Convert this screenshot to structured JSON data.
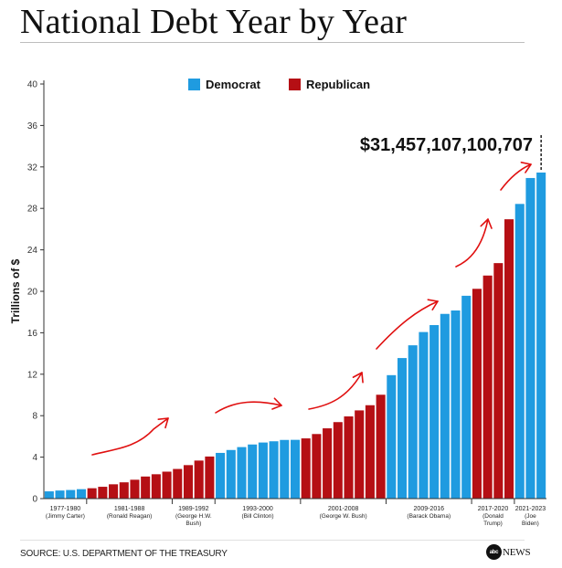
{
  "title": "National Debt Year by Year",
  "source": "SOURCE: U.S. DEPARTMENT OF THE TREASURY",
  "logo": {
    "mark": "abc",
    "text": "NEWS"
  },
  "colors": {
    "democrat": "#1f9be0",
    "republican": "#b50f14",
    "annotation": "#e01010",
    "axis": "#333333",
    "grid": "#dddddd"
  },
  "chart_data": {
    "type": "bar",
    "title": "",
    "xlabel": "",
    "ylabel": "Trillions of $",
    "ylim": [
      0,
      40
    ],
    "yticks": [
      0,
      4,
      8,
      12,
      16,
      20,
      24,
      28,
      32,
      36,
      40
    ],
    "grid": false,
    "legend_position": "top-center",
    "legend": [
      {
        "name": "Democrat",
        "party": "D"
      },
      {
        "name": "Republican",
        "party": "R"
      }
    ],
    "callout": "$31,457,107,100,707",
    "years": [
      1977,
      1978,
      1979,
      1980,
      1981,
      1982,
      1983,
      1984,
      1985,
      1986,
      1987,
      1988,
      1989,
      1990,
      1991,
      1992,
      1993,
      1994,
      1995,
      1996,
      1997,
      1998,
      1999,
      2000,
      2001,
      2002,
      2003,
      2004,
      2005,
      2006,
      2007,
      2008,
      2009,
      2010,
      2011,
      2012,
      2013,
      2014,
      2015,
      2016,
      2017,
      2018,
      2019,
      2020,
      2021,
      2022,
      2023
    ],
    "values": [
      0.7,
      0.78,
      0.83,
      0.91,
      1.0,
      1.14,
      1.38,
      1.57,
      1.82,
      2.13,
      2.35,
      2.6,
      2.86,
      3.23,
      3.67,
      4.06,
      4.41,
      4.69,
      4.97,
      5.22,
      5.41,
      5.53,
      5.66,
      5.67,
      5.81,
      6.23,
      6.78,
      7.38,
      7.93,
      8.51,
      9.01,
      10.02,
      11.91,
      13.56,
      14.79,
      16.07,
      16.74,
      17.82,
      18.15,
      19.57,
      20.24,
      21.52,
      22.72,
      26.95,
      28.43,
      30.93,
      31.46
    ],
    "parties": [
      "D",
      "D",
      "D",
      "D",
      "R",
      "R",
      "R",
      "R",
      "R",
      "R",
      "R",
      "R",
      "R",
      "R",
      "R",
      "R",
      "D",
      "D",
      "D",
      "D",
      "D",
      "D",
      "D",
      "D",
      "R",
      "R",
      "R",
      "R",
      "R",
      "R",
      "R",
      "R",
      "D",
      "D",
      "D",
      "D",
      "D",
      "D",
      "D",
      "D",
      "R",
      "R",
      "R",
      "R",
      "D",
      "D",
      "D"
    ],
    "groups": [
      {
        "years": "1977-1980",
        "president": "(Jimmy Carter)",
        "start": 0,
        "end": 3
      },
      {
        "years": "1981-1988",
        "president": "(Ronald Reagan)",
        "start": 4,
        "end": 11
      },
      {
        "years": "1989-1992",
        "president": "(George H.W.\nBush)",
        "start": 12,
        "end": 15
      },
      {
        "years": "1993-2000",
        "president": "(Bill Clinton)",
        "start": 16,
        "end": 23
      },
      {
        "years": "2001-2008",
        "president": "(George W. Bush)",
        "start": 24,
        "end": 31
      },
      {
        "years": "2009-2016",
        "president": "(Barack Obama)",
        "start": 32,
        "end": 39
      },
      {
        "years": "2017-2020",
        "president": "(Donald\nTrump)",
        "start": 40,
        "end": 43
      },
      {
        "years": "2021-2023",
        "president": "(Joe\nBiden)",
        "start": 44,
        "end": 46
      }
    ],
    "annotations": [
      "red arrows drawn over each administration showing rising debt"
    ]
  }
}
